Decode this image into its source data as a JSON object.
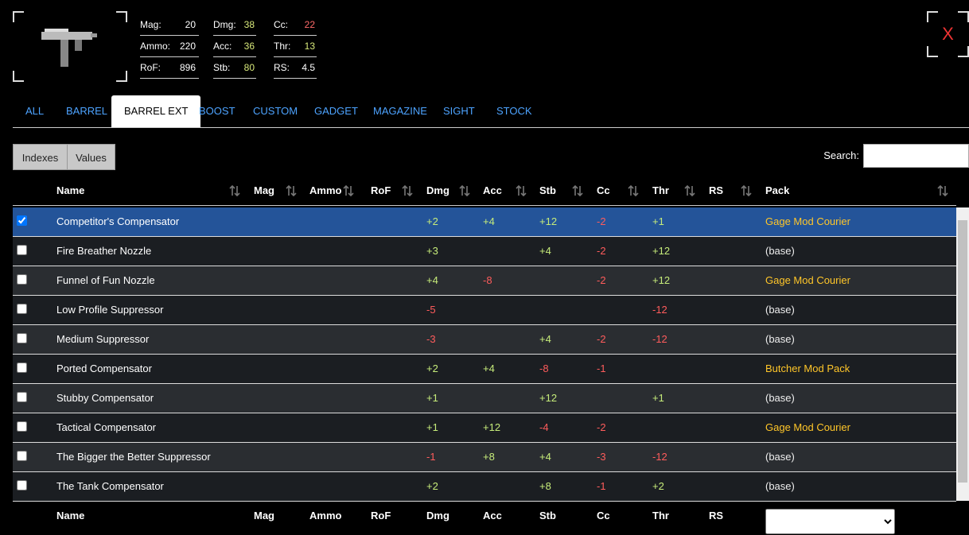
{
  "weapon_stats": [
    [
      {
        "label": "Mag:",
        "value": 20,
        "color": "#ffffff"
      },
      {
        "label": "Dmg:",
        "value": 38,
        "color": "#d7e87a"
      },
      {
        "label": "Cc:",
        "value": 22,
        "color": "#ff6b6b"
      }
    ],
    [
      {
        "label": "Ammo:",
        "value": 220,
        "color": "#ffffff"
      },
      {
        "label": "Acc:",
        "value": 36,
        "color": "#d7e87a"
      },
      {
        "label": "Thr:",
        "value": 13,
        "color": "#d7e87a"
      }
    ],
    [
      {
        "label": "RoF:",
        "value": 896,
        "color": "#ffffff"
      },
      {
        "label": "Stb:",
        "value": 80,
        "color": "#d7e87a"
      },
      {
        "label": "RS:",
        "value": 4.5,
        "color": "#ffffff"
      }
    ]
  ],
  "close": "X",
  "tabs": [
    "ALL",
    "BARREL",
    "BARREL EXT",
    "BOOST",
    "CUSTOM",
    "GADGET",
    "MAGAZINE",
    "SIGHT",
    "STOCK"
  ],
  "active_tab": 2,
  "buttons": [
    "Indexes",
    "Values"
  ],
  "search_label": "Search:",
  "table": {
    "header": [
      "Name",
      "Mag",
      "Ammo",
      "RoF",
      "Dmg",
      "Acc",
      "Stb",
      "Cc",
      "Thr",
      "RS",
      "Pack"
    ],
    "rows": [
      {
        "name": "Competitor's Compensator",
        "dmg": "+2",
        "acc": "+4",
        "stb": "+12",
        "cc": "-2",
        "thr": "+1",
        "pack": "Gage Mod Courier",
        "pack_color": "#ffc629",
        "selected": true
      },
      {
        "name": "Fire Breather Nozzle",
        "dmg": "+3",
        "stb": "+4",
        "cc": "-2",
        "thr": "+12",
        "pack": "(base)"
      },
      {
        "name": "Funnel of Fun Nozzle",
        "dmg": "+4",
        "acc": "-8",
        "cc": "-2",
        "thr": "+12",
        "pack": "Gage Mod Courier",
        "pack_color": "#ffc629"
      },
      {
        "name": "Low Profile Suppressor",
        "dmg": "-5",
        "thr": "-12",
        "pack": "(base)"
      },
      {
        "name": "Medium Suppressor",
        "dmg": "-3",
        "stb": "+4",
        "cc": "-2",
        "thr": "-12",
        "pack": "(base)"
      },
      {
        "name": "Ported Compensator",
        "dmg": "+2",
        "acc": "+4",
        "stb": "-8",
        "cc": "-1",
        "pack": "Butcher Mod Pack",
        "pack_color": "#ffc629"
      },
      {
        "name": "Stubby Compensator",
        "dmg": "+1",
        "stb": "+12",
        "thr": "+1",
        "pack": "(base)"
      },
      {
        "name": "Tactical Compensator",
        "dmg": "+1",
        "acc": "+12",
        "stb": "-4",
        "cc": "-2",
        "pack": "Gage Mod Courier",
        "pack_color": "#ffc629"
      },
      {
        "name": "The Bigger the Better Suppressor",
        "dmg": "-1",
        "acc": "+8",
        "stb": "+4",
        "cc": "-3",
        "thr": "-12",
        "pack": "(base)"
      },
      {
        "name": "The Tank Compensator",
        "dmg": "+2",
        "stb": "+8",
        "cc": "-1",
        "thr": "+2",
        "pack": "(base)"
      }
    ],
    "footer": [
      "Name",
      "Mag",
      "Ammo",
      "RoF",
      "Dmg",
      "Acc",
      "Stb",
      "Cc",
      "Thr",
      "RS"
    ]
  }
}
